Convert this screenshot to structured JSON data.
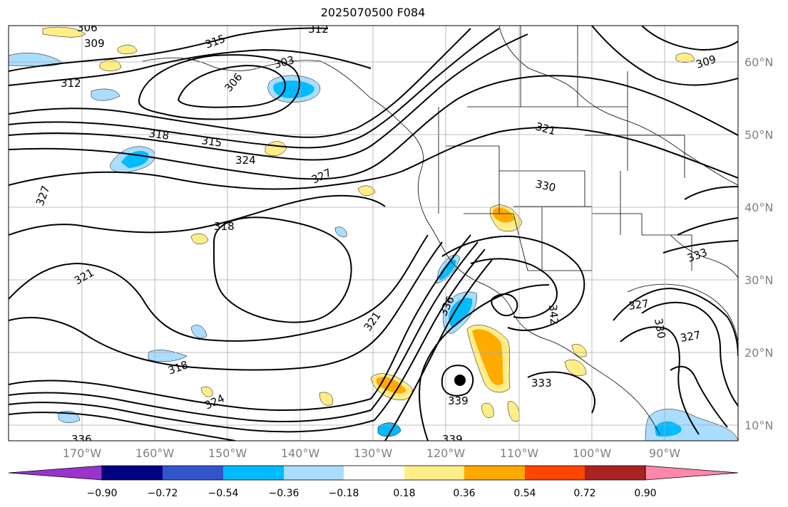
{
  "title": "2025070500 F084",
  "lon_ticks": [
    "170°W",
    "160°W",
    "150°W",
    "140°W",
    "130°W",
    "120°W",
    "110°W",
    "100°W",
    "90°W"
  ],
  "lat_ticks": [
    "60°N",
    "50°N",
    "40°N",
    "30°N",
    "20°N",
    "10°N"
  ],
  "colorbar": {
    "colors": [
      "#9933cc",
      "#000080",
      "#3355cc",
      "#00bbff",
      "#aaddff",
      "#ffffff",
      "#ffee88",
      "#ffaa00",
      "#ff4400",
      "#aa2222",
      "#ff88aa"
    ],
    "tick_labels": [
      "−0.90",
      "−0.72",
      "−0.54",
      "−0.36",
      "−0.18",
      "0.18",
      "0.36",
      "0.54",
      "0.72",
      "0.90"
    ]
  },
  "contour_labels": [
    "306",
    "309",
    "312",
    "315",
    "303",
    "306",
    "312",
    "309",
    "318",
    "315",
    "324",
    "327",
    "321",
    "330",
    "327",
    "318",
    "321",
    "324",
    "321",
    "318",
    "336",
    "342",
    "339",
    "333",
    "327",
    "330",
    "327",
    "324",
    "333",
    "336",
    "339"
  ],
  "colors": {
    "contour": "#000000",
    "grid": "#aaaaaa",
    "tick_text": "#808080",
    "land": "#000000"
  }
}
